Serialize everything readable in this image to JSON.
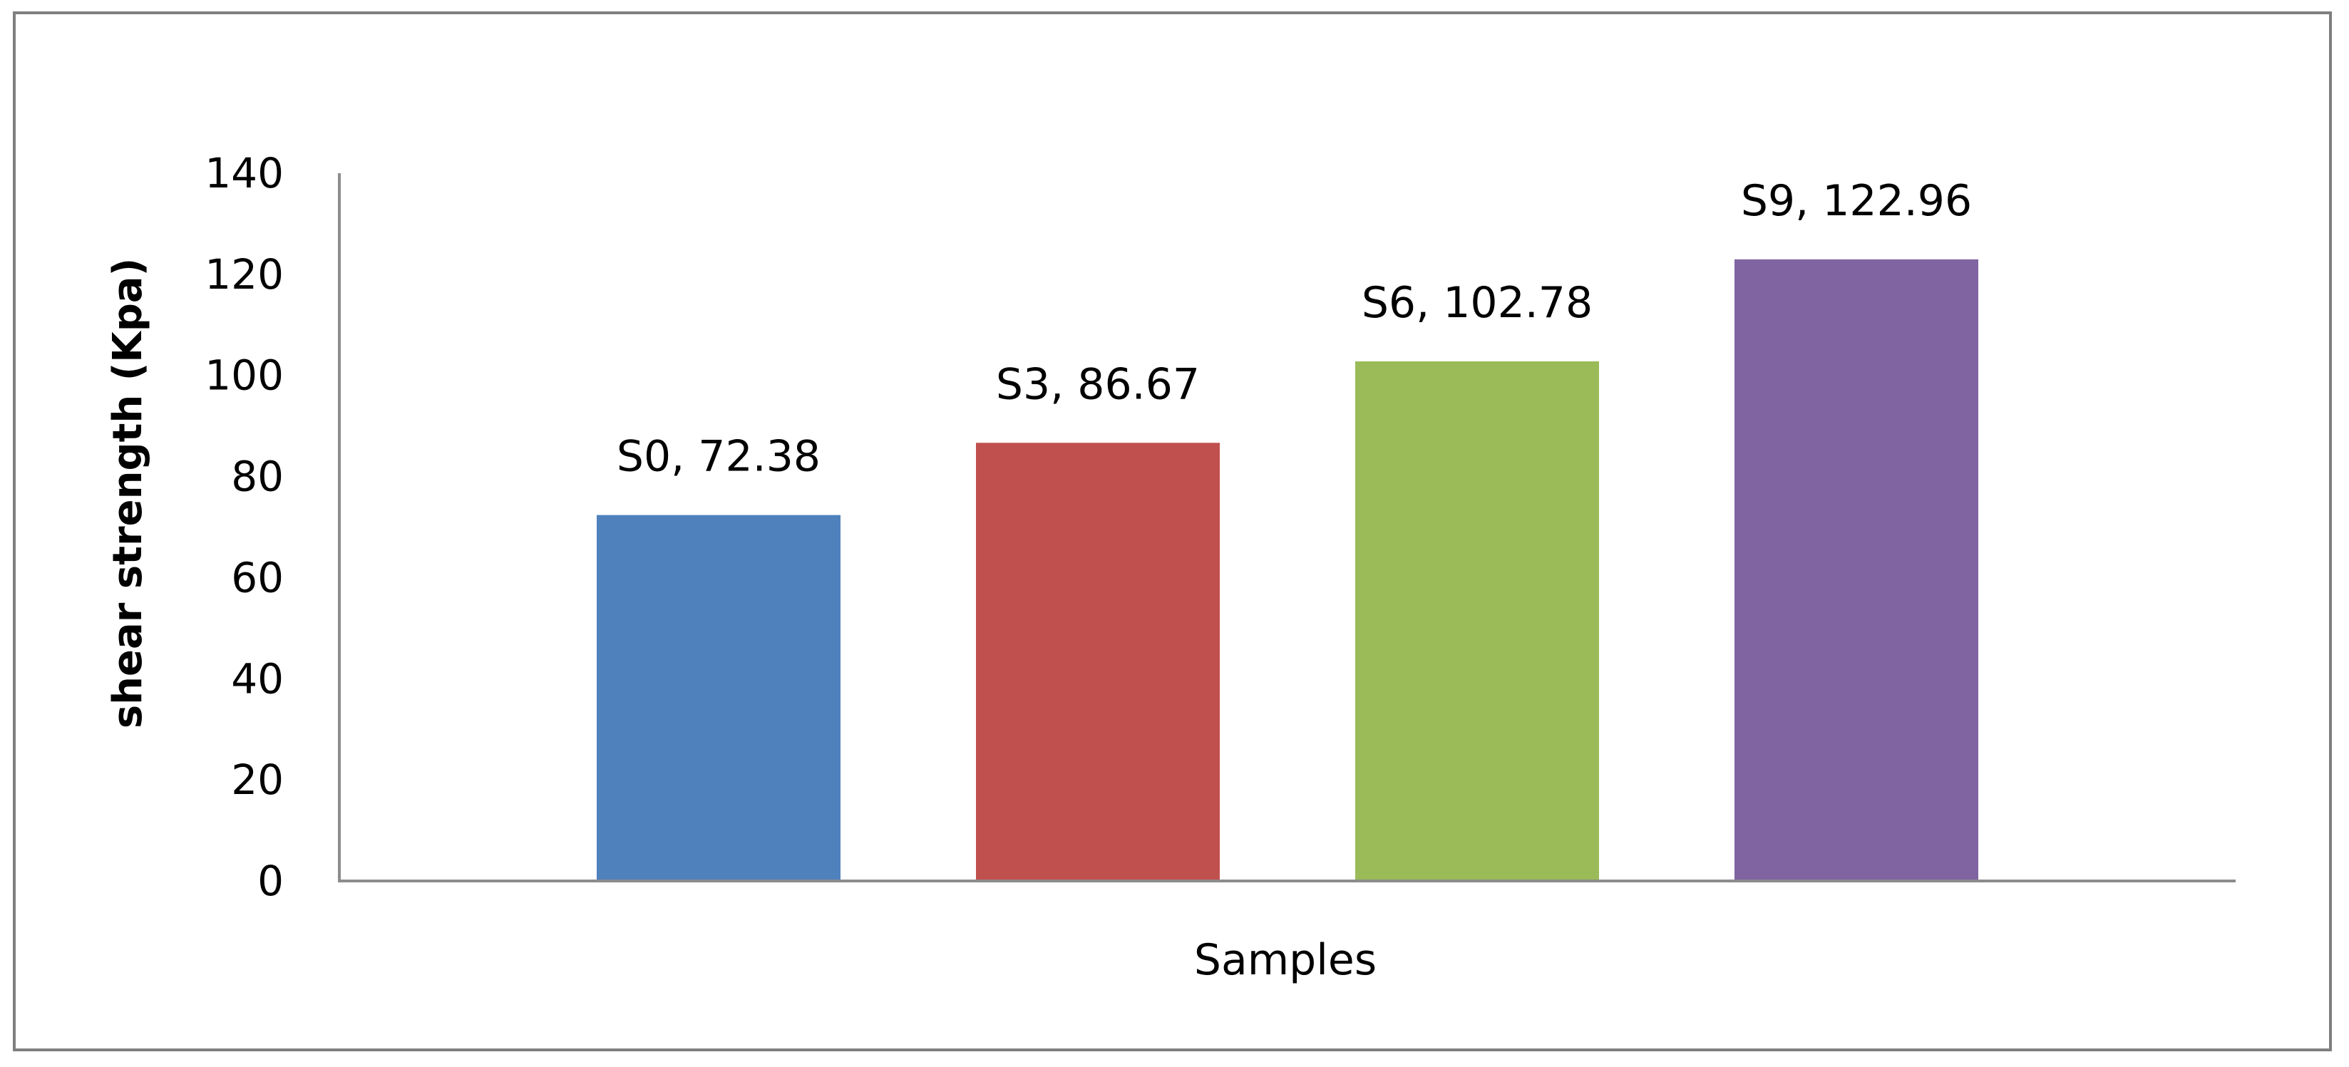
{
  "chart_data": {
    "type": "bar",
    "title": "",
    "xlabel": "Samples",
    "ylabel": "shear strength (Kpa)",
    "ylim": [
      0,
      140
    ],
    "yticks": [
      0,
      20,
      40,
      60,
      80,
      100,
      120,
      140
    ],
    "grid": false,
    "legend": "none",
    "categories": [
      "S0",
      "S3",
      "S6",
      "S9"
    ],
    "values": [
      72.38,
      86.67,
      102.78,
      122.96
    ],
    "data_labels": [
      "S0, 72.38",
      "S3, 86.67",
      "S6, 102.78",
      "S9, 122.96"
    ],
    "colors": [
      "#4f81bd",
      "#c0504d",
      "#9bbb59",
      "#8064a2"
    ],
    "axis_color": "#8c8c8c",
    "frame_color": "#7f7f7f"
  }
}
